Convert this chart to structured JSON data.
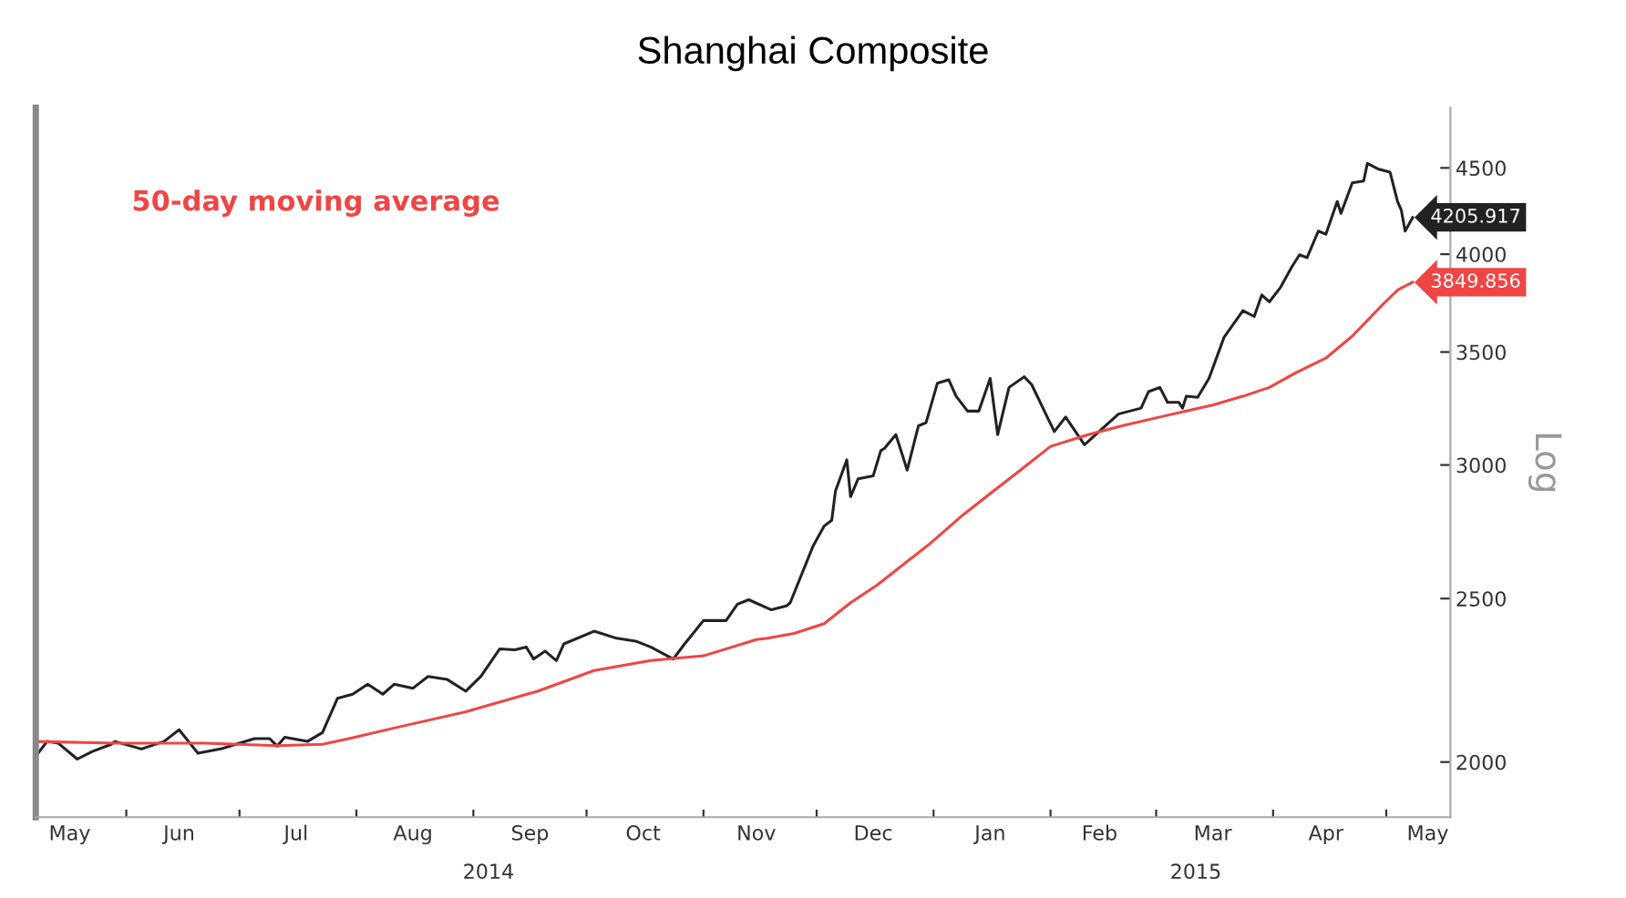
{
  "chart_data": {
    "type": "line",
    "title": "Shanghai Composite",
    "ylabel": "Log",
    "log": true,
    "legend": "top left",
    "grid": false,
    "ylim": [
      1855,
      4885
    ],
    "yticks": [
      2000,
      2500,
      3000,
      3500,
      4000,
      4500
    ],
    "xlim": [
      "2014-05-08",
      "2015-05-18"
    ],
    "xticks": [
      {
        "value": "2014-05-17",
        "label": "May"
      },
      {
        "value": "2014-06-01",
        "label": null
      },
      {
        "value": "2014-06-15",
        "label": "Jun"
      },
      {
        "value": "2014-07-01",
        "label": null
      },
      {
        "value": "2014-07-16",
        "label": "Jul"
      },
      {
        "value": "2014-08-01",
        "label": null
      },
      {
        "value": "2014-08-16",
        "label": "Aug"
      },
      {
        "value": "2014-09-01",
        "label": null
      },
      {
        "value": "2014-09-16",
        "label": "Sep"
      },
      {
        "value": "2014-10-01",
        "label": null
      },
      {
        "value": "2014-10-16",
        "label": "Oct"
      },
      {
        "value": "2014-11-01",
        "label": null
      },
      {
        "value": "2014-11-15",
        "label": "Nov"
      },
      {
        "value": "2014-12-01",
        "label": null
      },
      {
        "value": "2014-12-16",
        "label": "Dec"
      },
      {
        "value": "2015-01-01",
        "label": null
      },
      {
        "value": "2015-01-16",
        "label": "Jan"
      },
      {
        "value": "2015-02-01",
        "label": null
      },
      {
        "value": "2015-02-14",
        "label": "Feb"
      },
      {
        "value": "2015-03-01",
        "label": null
      },
      {
        "value": "2015-03-16",
        "label": "Mar"
      },
      {
        "value": "2015-04-01",
        "label": null
      },
      {
        "value": "2015-04-15",
        "label": "Apr"
      },
      {
        "value": "2015-05-01",
        "label": null
      },
      {
        "value": "2015-05-12",
        "label": "May"
      }
    ],
    "annotations": [
      "2014",
      "2015"
    ],
    "series": [
      {
        "color": "#222222",
        "x": [
          "2014-05-08",
          "2014-05-11",
          "2014-05-14",
          "2014-05-19",
          "2014-05-23",
          "2014-05-28",
          "2014-05-29",
          "2014-06-05",
          "2014-06-11",
          "2014-06-15",
          "2014-06-20",
          "2014-06-26",
          "2014-06-30",
          "2014-07-05",
          "2014-07-09",
          "2014-07-11",
          "2014-07-13",
          "2014-07-19",
          "2014-07-23",
          "2014-07-27",
          "2014-07-31",
          "2014-08-04",
          "2014-08-08",
          "2014-08-11",
          "2014-08-16",
          "2014-08-20",
          "2014-08-25",
          "2014-08-30",
          "2014-09-03",
          "2014-09-08",
          "2014-09-12",
          "2014-09-15",
          "2014-09-17",
          "2014-09-20",
          "2014-09-23",
          "2014-09-25",
          "2014-10-03",
          "2014-10-09",
          "2014-10-14",
          "2014-10-18",
          "2014-10-24",
          "2014-10-27",
          "2014-11-01",
          "2014-11-07",
          "2014-11-10",
          "2014-11-13",
          "2014-11-19",
          "2014-11-23",
          "2014-11-24",
          "2014-11-30",
          "2014-12-03",
          "2014-12-05",
          "2014-12-06",
          "2014-12-09",
          "2014-12-10",
          "2014-12-12",
          "2014-12-16",
          "2014-12-18",
          "2014-12-19",
          "2014-12-22",
          "2014-12-25",
          "2014-12-28",
          "2014-12-30",
          "2015-01-02",
          "2015-01-05",
          "2015-01-07",
          "2015-01-10",
          "2015-01-13",
          "2015-01-16",
          "2015-01-18",
          "2015-01-21",
          "2015-01-25",
          "2015-01-27",
          "2015-01-30",
          "2015-02-02",
          "2015-02-05",
          "2015-02-10",
          "2015-02-13",
          "2015-02-19",
          "2015-02-25",
          "2015-02-27",
          "2015-03-02",
          "2015-03-04",
          "2015-03-07",
          "2015-03-08",
          "2015-03-09",
          "2015-03-12",
          "2015-03-15",
          "2015-03-19",
          "2015-03-24",
          "2015-03-27",
          "2015-03-29",
          "2015-03-31",
          "2015-04-03",
          "2015-04-06",
          "2015-04-08",
          "2015-04-10",
          "2015-04-13",
          "2015-04-15",
          "2015-04-18",
          "2015-04-19",
          "2015-04-22",
          "2015-04-25",
          "2015-04-26",
          "2015-04-29",
          "2015-05-02",
          "2015-05-04",
          "2015-05-05",
          "2015-05-06",
          "2015-05-08"
        ],
        "values": [
          2016,
          2057,
          2052,
          2008,
          2029,
          2049,
          2057,
          2036,
          2057,
          2090,
          2024,
          2036,
          2049,
          2065,
          2065,
          2044,
          2069,
          2057,
          2082,
          2182,
          2194,
          2224,
          2194,
          2224,
          2212,
          2248,
          2239,
          2203,
          2248,
          2334,
          2331,
          2340,
          2302,
          2327,
          2297,
          2350,
          2391,
          2368,
          2359,
          2340,
          2302,
          2350,
          2426,
          2426,
          2481,
          2496,
          2462,
          2475,
          2486,
          2684,
          2760,
          2782,
          2896,
          3021,
          2873,
          2944,
          2956,
          3059,
          3069,
          3127,
          2979,
          3165,
          3178,
          3354,
          3370,
          3295,
          3229,
          3229,
          3376,
          3127,
          3335,
          3384,
          3348,
          3242,
          3140,
          3203,
          3084,
          3127,
          3216,
          3242,
          3316,
          3335,
          3268,
          3268,
          3242,
          3295,
          3290,
          3376,
          3571,
          3703,
          3674,
          3784,
          3748,
          3824,
          3933,
          3997,
          3981,
          4128,
          4111,
          4298,
          4229,
          4409,
          4420,
          4528,
          4492,
          4474,
          4298,
          4247,
          4128,
          4205.917
        ],
        "value_labels": [
          null,
          null,
          null,
          null,
          null,
          null,
          null,
          null,
          null,
          null,
          null,
          null,
          null,
          null,
          null,
          null,
          null,
          null,
          null,
          null,
          null,
          null,
          null,
          null,
          null,
          null,
          null,
          null,
          null,
          null,
          null,
          null,
          null,
          null,
          null,
          null,
          null,
          null,
          null,
          null,
          null,
          null,
          null,
          null,
          null,
          null,
          null,
          null,
          null,
          null,
          null,
          null,
          null,
          null,
          null,
          null,
          null,
          null,
          null,
          null,
          null,
          null,
          null,
          null,
          null,
          null,
          null,
          null,
          null,
          null,
          null,
          null,
          null,
          null,
          null,
          null,
          null,
          null,
          null,
          null,
          null,
          null,
          null,
          null,
          null,
          null,
          null,
          null,
          null,
          null,
          null,
          null,
          null,
          null,
          null,
          null,
          null,
          null,
          null,
          null,
          null,
          null,
          null,
          null,
          null,
          null,
          null,
          null,
          null,
          "4205.917"
        ]
      },
      {
        "name": "50-day moving average",
        "color": "#f04545",
        "x": [
          "2014-05-08",
          "2014-05-29",
          "2014-06-22",
          "2014-07-11",
          "2014-07-23",
          "2014-07-30",
          "2014-08-11",
          "2014-08-30",
          "2014-09-18",
          "2014-10-03",
          "2014-10-18",
          "2014-11-01",
          "2014-11-15",
          "2014-11-18",
          "2014-11-25",
          "2014-12-03",
          "2014-12-10",
          "2014-12-17",
          "2014-12-24",
          "2014-12-31",
          "2015-01-08",
          "2015-01-16",
          "2015-01-24",
          "2015-02-01",
          "2015-02-11",
          "2015-02-20",
          "2015-03-02",
          "2015-03-09",
          "2015-03-16",
          "2015-03-24",
          "2015-03-31",
          "2015-04-07",
          "2015-04-15",
          "2015-04-22",
          "2015-04-30",
          "2015-05-04",
          "2015-05-08"
        ],
        "values": [
          2057,
          2052,
          2052,
          2045,
          2049,
          2065,
          2095,
          2142,
          2203,
          2266,
          2297,
          2312,
          2364,
          2368,
          2384,
          2416,
          2486,
          2546,
          2619,
          2694,
          2793,
          2885,
          2979,
          3077,
          3127,
          3165,
          3203,
          3229,
          3256,
          3295,
          3335,
          3402,
          3471,
          3577,
          3733,
          3809,
          3849.856
        ],
        "value_labels": [
          null,
          null,
          null,
          null,
          null,
          null,
          null,
          null,
          null,
          null,
          null,
          null,
          null,
          null,
          null,
          null,
          null,
          null,
          null,
          null,
          null,
          null,
          null,
          null,
          null,
          null,
          null,
          null,
          null,
          null,
          null,
          null,
          null,
          null,
          null,
          null,
          "3849.856"
        ]
      }
    ]
  }
}
